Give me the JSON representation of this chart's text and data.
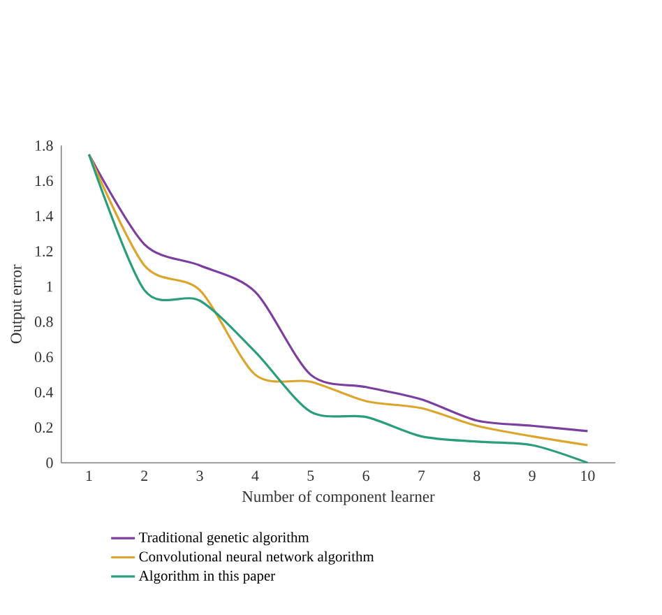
{
  "chart_data": {
    "type": "line",
    "xlabel": "Number of component learner",
    "ylabel": "Output error",
    "x": [
      1,
      2,
      3,
      4,
      5,
      6,
      7,
      8,
      9,
      10
    ],
    "series": [
      {
        "name": "Traditional genetic algorithm",
        "color": "#7b3fa0",
        "values": [
          1.75,
          1.24,
          1.12,
          0.97,
          0.5,
          0.43,
          0.36,
          0.24,
          0.21,
          0.18
        ]
      },
      {
        "name": "Convolutional neural network algorithm",
        "color": "#dca52c",
        "values": [
          1.75,
          1.12,
          0.98,
          0.5,
          0.46,
          0.35,
          0.31,
          0.21,
          0.15,
          0.1
        ]
      },
      {
        "name": "Algorithm in this paper",
        "color": "#2a9d7c",
        "values": [
          1.75,
          0.98,
          0.92,
          0.63,
          0.29,
          0.26,
          0.15,
          0.12,
          0.1,
          0.0
        ]
      }
    ],
    "xlim": [
      0.5,
      10.5
    ],
    "ylim": [
      0,
      1.8
    ],
    "xticks": [
      1,
      2,
      3,
      4,
      5,
      6,
      7,
      8,
      9,
      10
    ],
    "yticks": [
      0,
      {
        "value": 0.2,
        "label": "0.2"
      },
      {
        "value": 0.4,
        "label": "0.4"
      },
      {
        "value": 0.6,
        "label": "0.6"
      },
      {
        "value": 0.8,
        "label": "0.8"
      },
      1,
      {
        "value": 1.2,
        "label": "1.2"
      },
      {
        "value": 1.4,
        "label": "1.4"
      },
      {
        "value": 1.6,
        "label": "1.6"
      },
      {
        "value": 1.8,
        "label": "1.8"
      }
    ],
    "legend": "bottom",
    "grid": false,
    "marker": "none",
    "line_style": "solid"
  }
}
